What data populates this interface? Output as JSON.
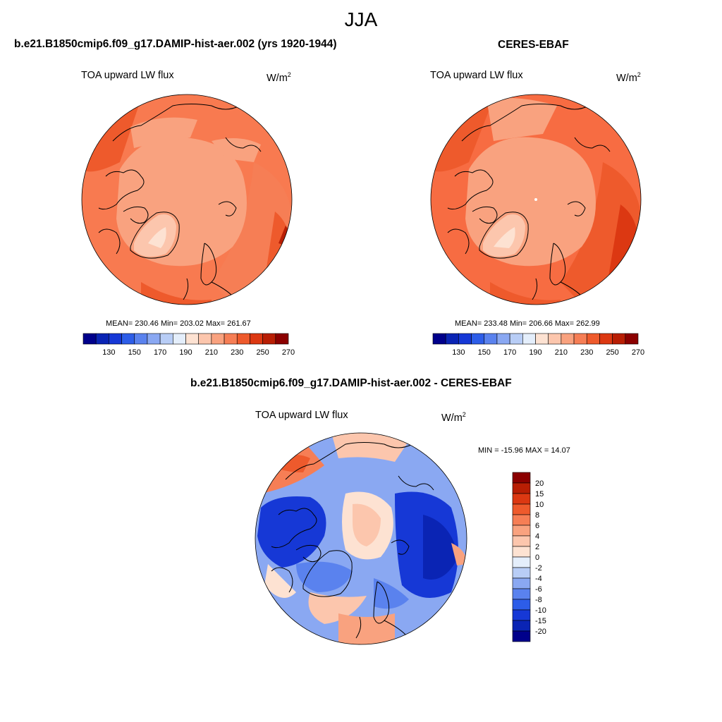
{
  "figure": {
    "title": "JJA"
  },
  "panels": [
    {
      "title": "b.e21.B1850cmip6.f09_g17.DAMIP-hist-aer.002 (yrs 1920-1944)",
      "variable": "TOA upward LW flux",
      "units": "W/m",
      "units_sup": "2",
      "stats_text": "MEAN= 230.46  Min= 203.02  Max= 261.67",
      "stats": {
        "mean": 230.46,
        "min": 203.02,
        "max": 261.67
      },
      "base_color": "#f87a50"
    },
    {
      "title": "CERES-EBAF",
      "variable": "TOA upward LW flux",
      "units": "W/m",
      "units_sup": "2",
      "stats_text": "MEAN= 233.48  Min= 206.66  Max= 262.99",
      "stats": {
        "mean": 233.48,
        "min": 206.66,
        "max": 262.99
      },
      "base_color": "#f76c42"
    },
    {
      "title": "b.e21.B1850cmip6.f09_g17.DAMIP-hist-aer.002 - CERES-EBAF",
      "variable": "TOA upward LW flux",
      "units": "W/m",
      "units_sup": "2",
      "stats_text": "MIN = -15.96 MAX =  14.07",
      "stats": {
        "min": -15.96,
        "max": 14.07
      },
      "base_color": "#5a82ee"
    }
  ],
  "colorbar_abs": {
    "colors": [
      "#00008b",
      "#0a24b4",
      "#1638d6",
      "#2d5de8",
      "#5a82ee",
      "#8aa8f2",
      "#b8cdf6",
      "#e4eefb",
      "#fde2d2",
      "#fcc6ad",
      "#f9a27f",
      "#f67e55",
      "#ee5a2c",
      "#dc3812",
      "#b81e04",
      "#8b0000"
    ],
    "labels": [
      "130",
      "150",
      "170",
      "190",
      "210",
      "230",
      "250",
      "270"
    ]
  },
  "colorbar_diff": {
    "colors": [
      "#00008b",
      "#0a24b4",
      "#1638d6",
      "#2d5de8",
      "#5a82ee",
      "#8aa8f2",
      "#b8cdf6",
      "#e4eefb",
      "#fde2d2",
      "#fcc6ad",
      "#f9a27f",
      "#f67e55",
      "#ee5a2c",
      "#dc3812",
      "#b81e04",
      "#8b0000"
    ],
    "labels": [
      "20",
      "15",
      "10",
      "8",
      "6",
      "4",
      "2",
      "0",
      "-2",
      "-4",
      "-6",
      "-8",
      "-10",
      "-15",
      "-20"
    ]
  }
}
